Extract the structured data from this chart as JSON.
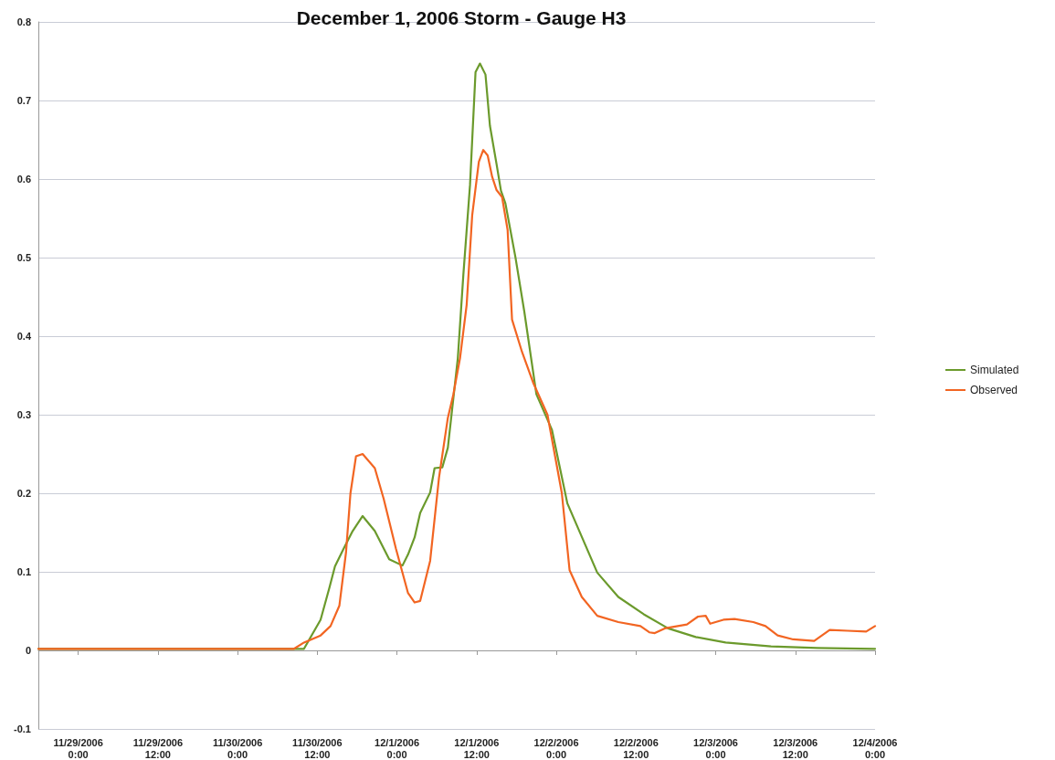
{
  "chart_data": {
    "type": "line",
    "title": "December 1, 2006 Storm - Gauge H3",
    "legend": "right",
    "grid": "y",
    "marker": "none",
    "line_style": "solid",
    "xlim": [
      "2006-11-28T18:00",
      "2006-12-04T00:00"
    ],
    "xticks": [
      {
        "value": "2006-11-29T00:00",
        "label": "11/29/2006 0:00"
      },
      {
        "value": "2006-11-29T12:00",
        "label": "11/29/2006 12:00"
      },
      {
        "value": "2006-11-30T00:00",
        "label": "11/30/2006 0:00"
      },
      {
        "value": "2006-11-30T12:00",
        "label": "11/30/2006 12:00"
      },
      {
        "value": "2006-12-01T00:00",
        "label": "12/1/2006 0:00"
      },
      {
        "value": "2006-12-01T12:00",
        "label": "12/1/2006 12:00"
      },
      {
        "value": "2006-12-02T00:00",
        "label": "12/2/2006 0:00"
      },
      {
        "value": "2006-12-02T12:00",
        "label": "12/2/2006 12:00"
      },
      {
        "value": "2006-12-03T00:00",
        "label": "12/3/2006 0:00"
      },
      {
        "value": "2006-12-03T12:00",
        "label": "12/3/2006 12:00"
      },
      {
        "value": "2006-12-04T00:00",
        "label": "12/4/2006 0:00"
      }
    ],
    "ylim": [
      -0.1,
      0.8
    ],
    "yticks": [
      -0.1,
      0,
      0.1,
      0.2,
      0.3,
      0.4,
      0.5,
      0.6,
      0.7,
      0.8
    ],
    "series": [
      {
        "name": "Simulated",
        "color": "#6b9a2c",
        "x": [
          "2006-11-28T18:00",
          "2006-11-30T10:00",
          "2006-11-30T12:30",
          "2006-11-30T13:50",
          "2006-11-30T14:40",
          "2006-11-30T16:00",
          "2006-11-30T17:20",
          "2006-11-30T18:50",
          "2006-11-30T20:40",
          "2006-11-30T22:50",
          "2006-12-01T00:50",
          "2006-12-01T01:40",
          "2006-12-01T02:40",
          "2006-12-01T03:30",
          "2006-12-01T05:00",
          "2006-12-01T05:40",
          "2006-12-01T06:50",
          "2006-12-01T07:40",
          "2006-12-01T09:10",
          "2006-12-01T10:00",
          "2006-12-01T11:00",
          "2006-12-01T11:50",
          "2006-12-01T12:30",
          "2006-12-01T13:20",
          "2006-12-01T14:00",
          "2006-12-01T15:00",
          "2006-12-01T15:40",
          "2006-12-01T16:20",
          "2006-12-01T17:50",
          "2006-12-01T19:10",
          "2006-12-01T21:00",
          "2006-12-01T23:20",
          "2006-12-02T01:40",
          "2006-12-02T06:10",
          "2006-12-02T09:20",
          "2006-12-02T13:10",
          "2006-12-02T16:50",
          "2006-12-02T21:00",
          "2006-12-03T01:30",
          "2006-12-03T08:20",
          "2006-12-03T15:20",
          "2006-12-04T00:00"
        ],
        "values": [
          0.002,
          0.002,
          0.039,
          0.08,
          0.107,
          0.13,
          0.152,
          0.171,
          0.152,
          0.116,
          0.108,
          0.122,
          0.144,
          0.175,
          0.201,
          0.232,
          0.233,
          0.258,
          0.372,
          0.478,
          0.592,
          0.736,
          0.747,
          0.733,
          0.668,
          0.619,
          0.585,
          0.569,
          0.501,
          0.432,
          0.326,
          0.281,
          0.187,
          0.099,
          0.068,
          0.046,
          0.028,
          0.017,
          0.01,
          0.005,
          0.003,
          0.002
        ]
      },
      {
        "name": "Observed",
        "color": "#f26522",
        "x": [
          "2006-11-28T18:00",
          "2006-11-30T08:30",
          "2006-11-30T10:00",
          "2006-11-30T12:30",
          "2006-11-30T14:00",
          "2006-11-30T15:20",
          "2006-11-30T16:20",
          "2006-11-30T17:00",
          "2006-11-30T17:50",
          "2006-11-30T18:50",
          "2006-11-30T20:40",
          "2006-11-30T22:00",
          "2006-11-30T23:50",
          "2006-12-01T01:40",
          "2006-12-01T02:40",
          "2006-12-01T03:30",
          "2006-12-01T05:00",
          "2006-12-01T06:20",
          "2006-12-01T07:40",
          "2006-12-01T08:30",
          "2006-12-01T09:30",
          "2006-12-01T10:30",
          "2006-12-01T11:20",
          "2006-12-01T12:20",
          "2006-12-01T13:00",
          "2006-12-01T13:40",
          "2006-12-01T14:20",
          "2006-12-01T15:00",
          "2006-12-01T15:50",
          "2006-12-01T16:40",
          "2006-12-01T17:20",
          "2006-12-01T18:50",
          "2006-12-01T20:30",
          "2006-12-01T22:40",
          "2006-12-02T00:50",
          "2006-12-02T02:00",
          "2006-12-02T03:50",
          "2006-12-02T06:10",
          "2006-12-02T09:20",
          "2006-12-02T12:40",
          "2006-12-02T14:00",
          "2006-12-02T14:50",
          "2006-12-02T16:20",
          "2006-12-02T19:40",
          "2006-12-02T21:20",
          "2006-12-02T22:30",
          "2006-12-02T23:10",
          "2006-12-03T01:10",
          "2006-12-03T02:50",
          "2006-12-03T05:40",
          "2006-12-03T07:30",
          "2006-12-03T09:20",
          "2006-12-03T11:40",
          "2006-12-03T14:50",
          "2006-12-03T17:10",
          "2006-12-03T19:50",
          "2006-12-03T22:40",
          "2006-12-04T00:00"
        ],
        "values": [
          0.002,
          0.002,
          0.01,
          0.019,
          0.031,
          0.057,
          0.125,
          0.2,
          0.247,
          0.25,
          0.232,
          0.193,
          0.13,
          0.073,
          0.061,
          0.063,
          0.114,
          0.22,
          0.296,
          0.326,
          0.372,
          0.44,
          0.554,
          0.622,
          0.637,
          0.63,
          0.603,
          0.586,
          0.577,
          0.535,
          0.421,
          0.38,
          0.341,
          0.3,
          0.2,
          0.102,
          0.068,
          0.044,
          0.036,
          0.031,
          0.023,
          0.022,
          0.028,
          0.033,
          0.043,
          0.044,
          0.034,
          0.039,
          0.04,
          0.036,
          0.031,
          0.019,
          0.014,
          0.012,
          0.026,
          0.025,
          0.024,
          0.031
        ]
      }
    ]
  }
}
